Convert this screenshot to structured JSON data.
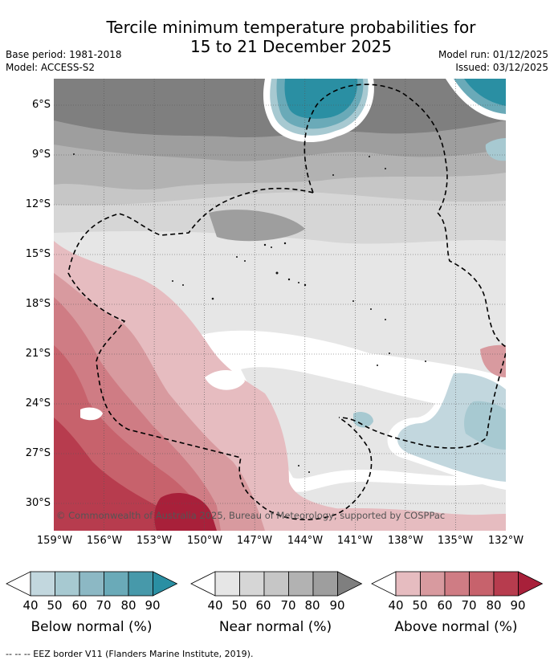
{
  "title": {
    "line1": "Tercile minimum temperature probabilities for",
    "line2": "15 to 21 December 2025"
  },
  "meta": {
    "base_period": "Base period: 1981-2018",
    "model": "Model: ACCESS-S2",
    "model_run": "Model run: 01/12/2025",
    "issued": "Issued: 03/12/2025"
  },
  "map": {
    "copyright": "© Commonwealth of Australia 2025, Bureau of Meteorology, supported by COSPPac",
    "lon_labels": [
      "159°W",
      "156°W",
      "153°W",
      "150°W",
      "147°W",
      "144°W",
      "141°W",
      "138°W",
      "135°W",
      "132°W"
    ],
    "lat_labels": [
      "6°S",
      "9°S",
      "12°S",
      "15°S",
      "18°S",
      "21°S",
      "24°S",
      "27°S",
      "30°S"
    ],
    "colors": {
      "below": [
        "#c2d7de",
        "#a7c9d1",
        "#8cb8c4",
        "#6aaab8",
        "#4799aa",
        "#2a8fa3"
      ],
      "near": [
        "#e6e6e6",
        "#d6d6d6",
        "#c6c6c6",
        "#b2b2b2",
        "#9e9e9e",
        "#7f7f7f"
      ],
      "above": [
        "#e6bcc0",
        "#d89a9f",
        "#cf7c84",
        "#c7626c",
        "#b73c4e",
        "#a8203a"
      ]
    }
  },
  "legend": {
    "ticks": [
      "40",
      "50",
      "60",
      "70",
      "80",
      "90"
    ],
    "below_label": "Below normal (%)",
    "near_label": "Near normal (%)",
    "above_label": "Above normal (%)"
  },
  "footer": {
    "eez_text": "--  --  -- EEZ border V11 (Flanders Marine Institute, 2019)."
  }
}
